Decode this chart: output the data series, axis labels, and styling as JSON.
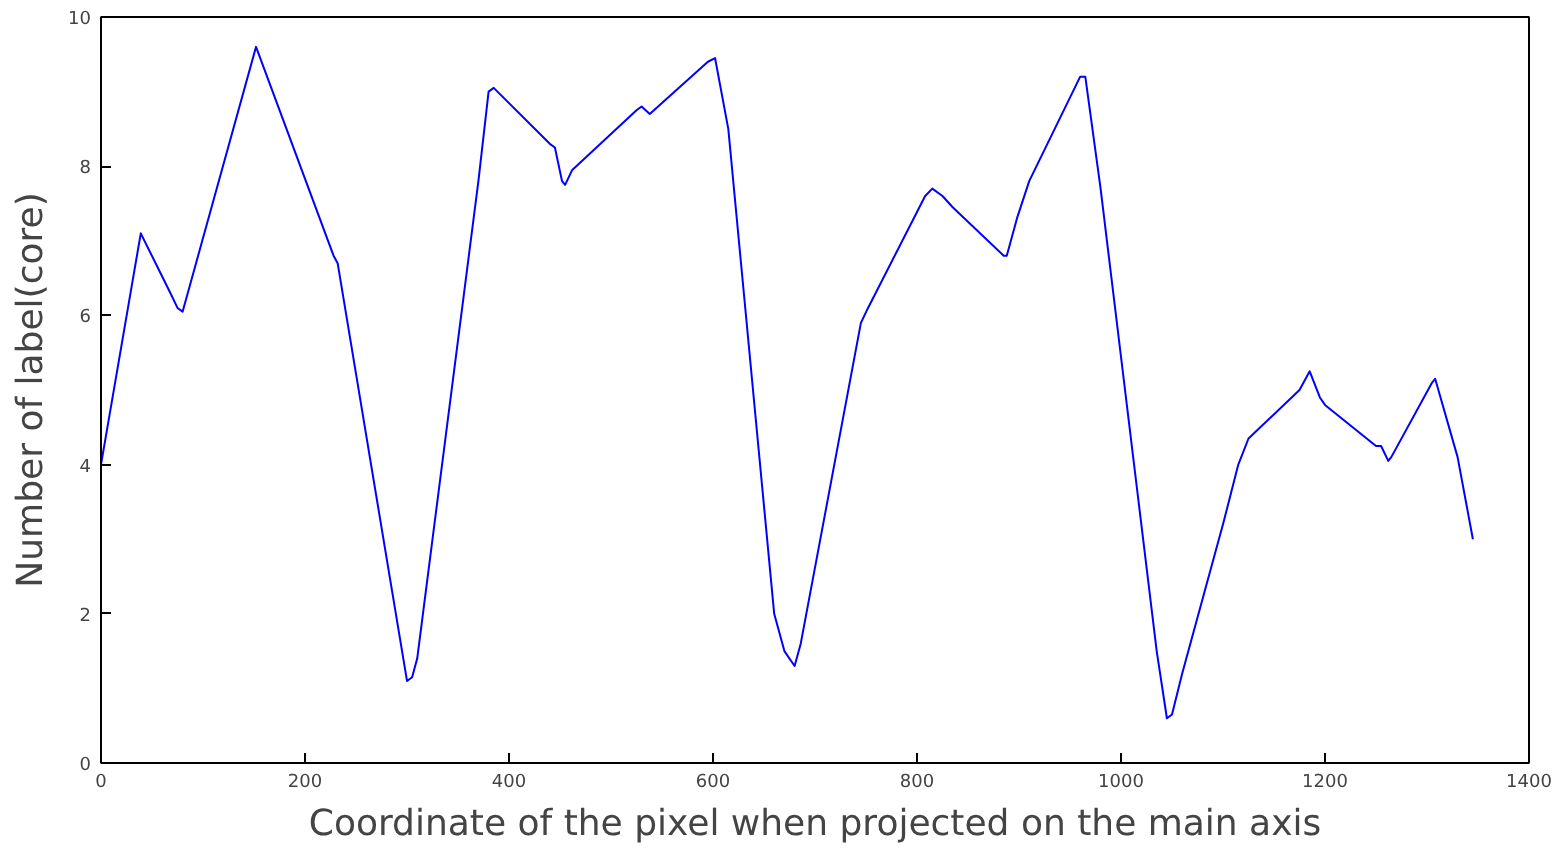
{
  "chart_data": {
    "type": "line",
    "xlabel": "Coordinate of the pixel when projected on the main axis",
    "ylabel": "Number of label(core)",
    "xlim": [
      0,
      1400
    ],
    "ylim": [
      0,
      10
    ],
    "xticks": [
      0,
      200,
      400,
      600,
      800,
      1000,
      1200,
      1400
    ],
    "yticks": [
      0,
      2,
      4,
      6,
      8,
      10
    ],
    "grid": false,
    "marker": "none",
    "line_style": "solid",
    "series": [
      {
        "color": "#0000ff",
        "x": [
          0,
          39,
          68,
          75,
          80,
          152,
          228,
          232,
          300,
          305,
          310,
          370,
          380,
          385,
          440,
          445,
          452,
          455,
          462,
          525,
          530,
          538,
          595,
          602,
          615,
          660,
          670,
          680,
          686,
          745,
          752,
          808,
          815,
          825,
          835,
          885,
          888,
          898,
          910,
          960,
          965,
          980,
          1035,
          1045,
          1050,
          1060,
          1100,
          1115,
          1125,
          1175,
          1185,
          1195,
          1200,
          1250,
          1255,
          1262,
          1265,
          1305,
          1308,
          1330,
          1345
        ],
        "values": [
          4.0,
          7.1,
          6.3,
          6.1,
          6.05,
          9.6,
          6.8,
          6.7,
          1.1,
          1.15,
          1.4,
          7.8,
          9.0,
          9.05,
          8.3,
          8.25,
          7.8,
          7.75,
          7.95,
          8.75,
          8.8,
          8.7,
          9.4,
          9.45,
          8.5,
          2.0,
          1.5,
          1.3,
          1.6,
          5.9,
          6.1,
          7.6,
          7.7,
          7.6,
          7.45,
          6.8,
          6.8,
          7.3,
          7.8,
          9.2,
          9.2,
          7.7,
          1.5,
          0.6,
          0.65,
          1.2,
          3.2,
          4.0,
          4.35,
          5.0,
          5.25,
          4.9,
          4.8,
          4.25,
          4.25,
          4.05,
          4.1,
          5.1,
          5.15,
          4.1,
          3.0
        ]
      }
    ]
  }
}
